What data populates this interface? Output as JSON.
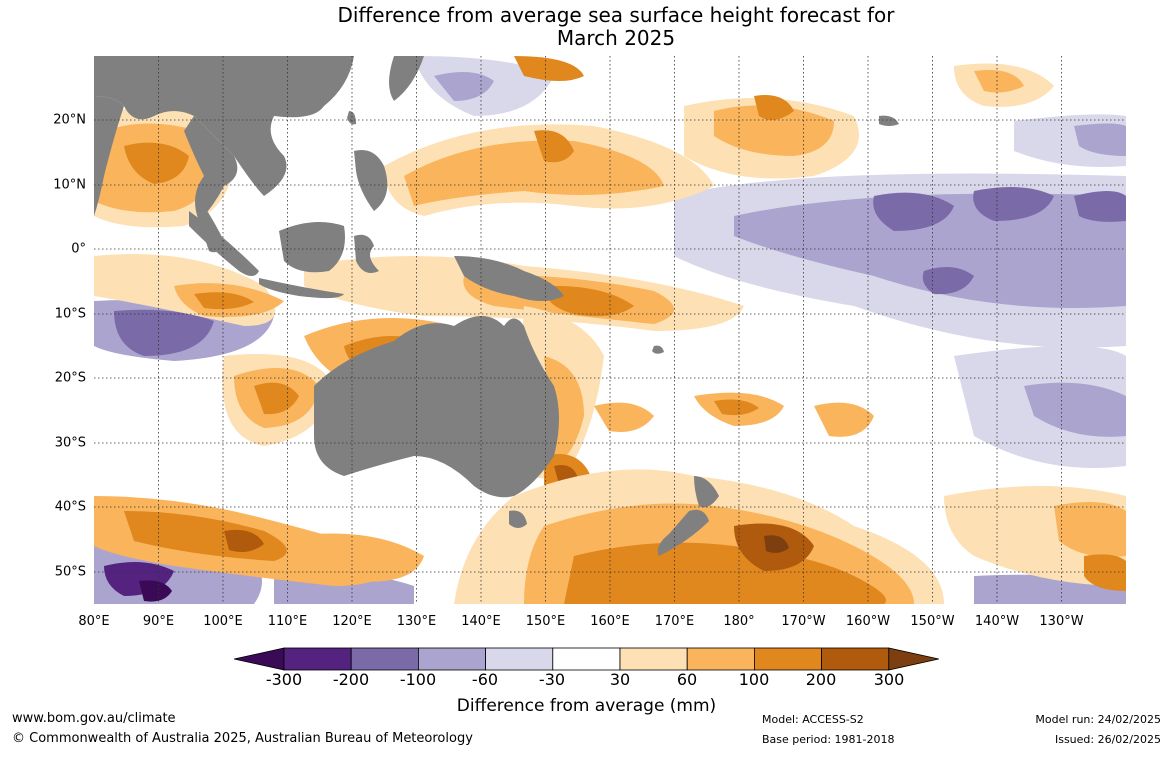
{
  "title_line1": "Difference from average sea surface height forecast for",
  "title_line2": "March 2025",
  "lat_labels": [
    "20°N",
    "10°N",
    "0°",
    "10°S",
    "20°S",
    "30°S",
    "40°S",
    "50°S"
  ],
  "lon_labels": [
    "80°E",
    "90°E",
    "100°E",
    "110°E",
    "120°E",
    "130°E",
    "140°E",
    "150°E",
    "160°E",
    "170°E",
    "180°",
    "170°W",
    "160°W",
    "150°W",
    "140°W",
    "130°W"
  ],
  "colorbar": {
    "title": "Difference from average (mm)",
    "ticks": [
      "-300",
      "-200",
      "-100",
      "-60",
      "-30",
      "30",
      "60",
      "100",
      "200",
      "300"
    ],
    "colors": [
      "#3b0a57",
      "#54237f",
      "#7b6aa8",
      "#aaa4cf",
      "#d8d8ea",
      "#ffffff",
      "#fde0b4",
      "#f9b45c",
      "#e0881e",
      "#b05a0e",
      "#7e3f10"
    ]
  },
  "footer": {
    "site": "www.bom.gov.au/climate",
    "copyright": "© Commonwealth of Australia 2025, Australian Bureau of Meteorology",
    "model": "Model: ACCESS-S2",
    "base_period": "Base period: 1981-2018",
    "model_run": "Model run: 24/02/2025",
    "issued": "Issued: 26/02/2025"
  },
  "colors": {
    "land": "#808080",
    "grid": "#333333"
  }
}
